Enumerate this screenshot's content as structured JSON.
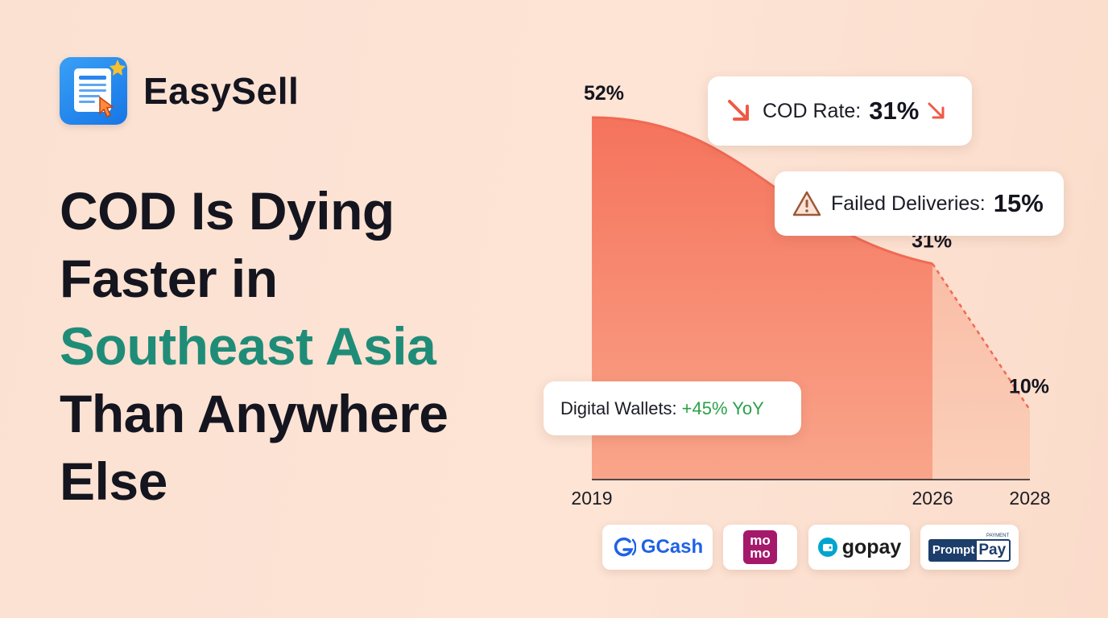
{
  "brand": {
    "name": "EasySell",
    "colors": {
      "tile": "#1f7ff0",
      "badge_star": "#f6c12c"
    }
  },
  "headline": {
    "line1": "COD Is Dying",
    "line2": "Faster in",
    "line3_accent": "Southeast Asia",
    "line4": "Than Anywhere",
    "line5": "Else",
    "accent_color": "#1f8c78"
  },
  "cards": {
    "cod_rate": {
      "label": "COD Rate:",
      "value": "31%",
      "icon": "down-right-arrow-icon"
    },
    "failed_deliveries": {
      "label": "Failed Deliveries:",
      "value": "15%",
      "icon": "warning-icon"
    },
    "digital_wallets": {
      "label": "Digital Wallets:",
      "value": "+45% YoY",
      "value_color": "#2aa14a"
    }
  },
  "payments": [
    {
      "name": "GCash",
      "text": "GCash"
    },
    {
      "name": "momo",
      "text": "mo mo"
    },
    {
      "name": "gopay",
      "text": "gopay"
    },
    {
      "name": "PromptPay",
      "text_a": "Prompt",
      "text_b": "Pay",
      "small": "PAYMENT"
    }
  ],
  "chart_data": {
    "type": "area",
    "x": [
      2019,
      2026,
      2028
    ],
    "x_ticks": [
      "2019",
      "2026",
      "2028"
    ],
    "series": [
      {
        "values": [
          52,
          31,
          10
        ],
        "labels": [
          "52%",
          "31%",
          "10%"
        ],
        "actual_range": [
          2019,
          2026
        ],
        "projected_range": [
          2026,
          2028
        ]
      }
    ],
    "ylim": [
      0,
      55
    ],
    "colors": {
      "actual": "#f5735c",
      "projected": "#f8b7a0",
      "line": "#ef6a55"
    }
  }
}
